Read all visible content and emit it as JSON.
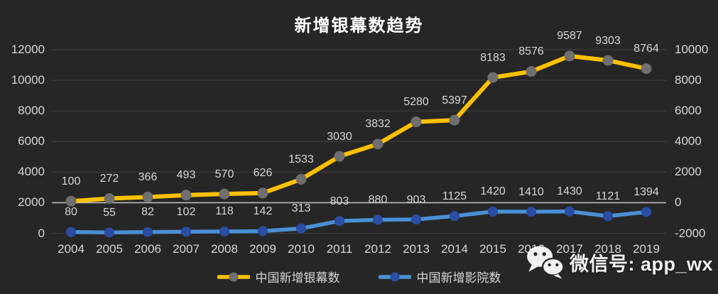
{
  "title": "新增银幕数趋势",
  "chart_data": {
    "type": "line",
    "title": "新增银幕数趋势",
    "categories": [
      "2004",
      "2005",
      "2006",
      "2007",
      "2008",
      "2009",
      "2010",
      "2011",
      "2012",
      "2013",
      "2014",
      "2015",
      "2016",
      "2017",
      "2018",
      "2019"
    ],
    "series": [
      {
        "name": "中国新增银幕数",
        "axis": "right",
        "color": "#ffc000",
        "marker_color": "#6f6f6f",
        "values": [
          100,
          272,
          366,
          493,
          570,
          626,
          1533,
          3030,
          3832,
          5280,
          5397,
          8183,
          8576,
          9587,
          9303,
          8764
        ]
      },
      {
        "name": "中国新增影院数",
        "axis": "left",
        "color": "#4a8fd3",
        "marker_color": "#2b4ea3",
        "values": [
          80,
          55,
          82,
          102,
          118,
          142,
          313,
          803,
          880,
          903,
          1125,
          1420,
          1410,
          1430,
          1121,
          1394
        ]
      }
    ],
    "left_axis": {
      "min": 0,
      "max": 12000,
      "ticks": [
        0,
        2000,
        4000,
        6000,
        8000,
        10000,
        12000
      ]
    },
    "right_axis": {
      "min": -2000,
      "max": 10000,
      "ticks": [
        -2000,
        0,
        2000,
        4000,
        6000,
        8000,
        10000
      ]
    },
    "emphasized_gridline": {
      "axis": "right",
      "value": 0
    },
    "grid": true,
    "legend_position": "bottom",
    "data_labels": true
  },
  "watermark": {
    "text": "微信号: app_wx",
    "icon": "wechat-icon"
  },
  "colors": {
    "background": "#262626",
    "gridline": "#3d3d3d",
    "zero_line": "#bdbdbd",
    "text": "#d6d6d6",
    "title": "#ffffff"
  }
}
